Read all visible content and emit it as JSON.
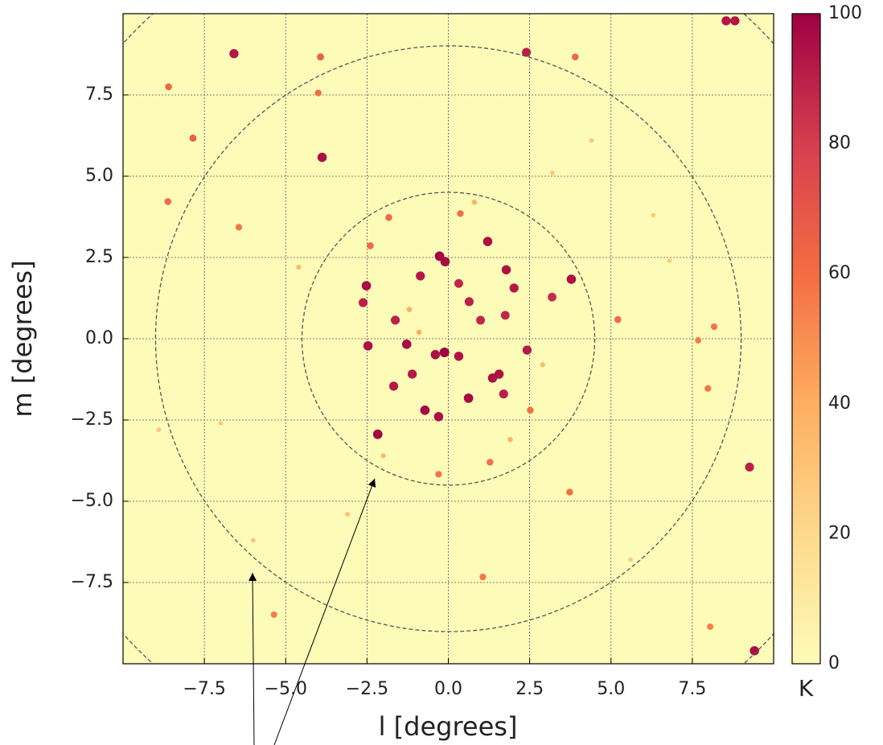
{
  "chart_data": {
    "type": "scatter",
    "xlabel": "l [degrees]",
    "ylabel": "m [degrees]",
    "colorbar_label": "K",
    "xlim": [
      -10,
      10
    ],
    "ylim": [
      -10,
      10
    ],
    "xticks": [
      {
        "value": -7.5,
        "label": "−7.5"
      },
      {
        "value": -5,
        "label": "−5.0"
      },
      {
        "value": -2.5,
        "label": "−2.5"
      },
      {
        "value": 0,
        "label": "0.0"
      },
      2.5,
      {
        "value": 5,
        "label": "5.0"
      },
      7.5
    ],
    "yticks": [
      {
        "value": -7.5,
        "label": "−7.5"
      },
      {
        "value": -5,
        "label": "−5.0"
      },
      {
        "value": -2.5,
        "label": "−2.5"
      },
      {
        "value": 0,
        "label": "0.0"
      },
      2.5,
      {
        "value": 5,
        "label": "5.0"
      },
      7.5
    ],
    "grid": true,
    "colorbar_lim": [
      0,
      100
    ],
    "colorbar_ticks": [
      0,
      20,
      40,
      60,
      80,
      100
    ],
    "colormap": [
      "#fdfbb8",
      "#fdd98c",
      "#fdae61",
      "#f46d43",
      "#d53e4f",
      "#9e0142"
    ],
    "circle_radii": [
      4.5,
      9,
      13.5
    ],
    "x": [
      -0.12,
      -2.17,
      -0.72,
      -0.3,
      -0.27,
      -0.1,
      1.21,
      1.78,
      3.78,
      -2.52,
      -2.47,
      -1.28,
      0.62,
      1.56,
      1.36,
      -3.88,
      -6.59,
      2.4,
      9.41,
      8.54,
      8.81,
      0.64,
      -0.86,
      2.02,
      -1.63,
      -2.62,
      -0.4,
      0.32,
      2.42,
      0.99,
      1.75,
      -1.11,
      -1.68,
      1.7,
      0.32,
      9.26,
      3.19,
      -3.93,
      -7.85,
      -8.62,
      -8.6,
      -6.44,
      5.21,
      8.17,
      7.98,
      3.9,
      3.73,
      1.06,
      -0.3,
      1.28,
      -1.83,
      0.37,
      7.68,
      8.05,
      -5.36,
      -4.0,
      2.52,
      -2.4,
      -6.0,
      -3.1,
      4.4,
      6.3,
      -1.2,
      1.9,
      -7.0,
      5.6,
      -4.6,
      3.2,
      0.8,
      -2.0,
      6.8,
      -8.9,
      2.9,
      -0.9
    ],
    "y": [
      -0.42,
      -2.94,
      -2.2,
      -2.4,
      2.54,
      2.37,
      2.99,
      2.12,
      1.83,
      1.63,
      -0.22,
      -0.17,
      -1.83,
      -1.09,
      -1.21,
      5.58,
      8.77,
      8.81,
      -9.6,
      9.78,
      9.78,
      1.14,
      1.93,
      1.56,
      0.57,
      1.11,
      -0.49,
      -0.54,
      -0.35,
      0.57,
      0.72,
      -1.09,
      -1.46,
      -1.7,
      1.7,
      -3.95,
      1.28,
      8.67,
      6.17,
      4.22,
      7.75,
      3.43,
      0.59,
      0.37,
      -1.53,
      8.67,
      -4.72,
      -7.33,
      -4.17,
      -3.8,
      3.73,
      3.85,
      -0.05,
      -8.86,
      -8.49,
      7.56,
      -2.2,
      2.86,
      -6.2,
      -5.4,
      6.1,
      3.8,
      0.9,
      -3.1,
      -2.6,
      -6.8,
      2.2,
      5.1,
      4.2,
      -3.6,
      2.4,
      -2.8,
      -0.8,
      0.2
    ],
    "values": [
      100,
      98,
      97,
      95,
      98,
      96,
      95,
      94,
      95,
      96,
      95,
      96,
      97,
      94,
      95,
      95,
      93,
      90,
      95,
      93,
      93,
      90,
      92,
      92,
      90,
      90,
      95,
      94,
      92,
      88,
      88,
      92,
      92,
      90,
      88,
      90,
      86,
      65,
      65,
      62,
      62,
      58,
      62,
      58,
      58,
      62,
      60,
      58,
      58,
      60,
      62,
      60,
      55,
      55,
      55,
      60,
      60,
      62,
      30,
      32,
      30,
      28,
      40,
      38,
      28,
      28,
      35,
      30,
      38,
      35,
      28,
      30,
      35,
      40
    ]
  }
}
